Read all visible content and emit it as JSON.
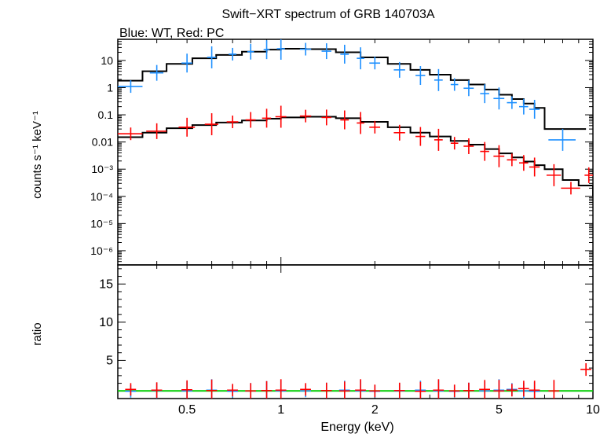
{
  "title": "Swift−XRT spectrum of GRB 140703A",
  "subtitle": "Blue: WT, Red: PC",
  "colors": {
    "wt": "#1e90ff",
    "pc": "#ff0000",
    "model": "#000000",
    "unity": "#00cc00"
  },
  "chart_data": [
    {
      "type": "scatter",
      "panel": "spectrum",
      "title": "Swift−XRT spectrum of GRB 140703A",
      "xlabel": "",
      "ylabel": "counts s⁻¹ keV⁻¹",
      "xscale": "log",
      "yscale": "log",
      "xlim": [
        0.3,
        10
      ],
      "ylim": [
        3e-07,
        60
      ],
      "yticks": [
        {
          "value": 10,
          "label": "10"
        },
        {
          "value": 1,
          "label": "1"
        },
        {
          "value": 0.1,
          "label": "0.1"
        },
        {
          "value": 0.01,
          "label": "0.01"
        },
        {
          "value": 0.001,
          "label": "10⁻³"
        },
        {
          "value": 0.0001,
          "label": "10⁻⁴"
        },
        {
          "value": 1e-05,
          "label": "10⁻⁵"
        },
        {
          "value": 1e-06,
          "label": "10⁻⁶"
        }
      ],
      "series": [
        {
          "color": "#1e90ff",
          "x": [
            0.33,
            0.4,
            0.5,
            0.6,
            0.7,
            0.8,
            0.9,
            1.0,
            1.2,
            1.4,
            1.6,
            1.8,
            2.0,
            2.4,
            2.8,
            3.2,
            3.6,
            4.0,
            4.5,
            5.0,
            5.5,
            6.0,
            6.5,
            8.0
          ],
          "y": [
            1.1,
            3.5,
            8.0,
            13,
            17,
            21,
            25,
            27,
            26,
            22,
            17,
            12,
            8.0,
            4.5,
            2.8,
            1.9,
            1.3,
            0.95,
            0.6,
            0.4,
            0.28,
            0.2,
            0.16,
            0.012
          ],
          "xerr": [
            0.03,
            0.02,
            0.02,
            0.02,
            0.02,
            0.02,
            0.02,
            0.03,
            0.05,
            0.05,
            0.05,
            0.05,
            0.08,
            0.1,
            0.1,
            0.1,
            0.1,
            0.15,
            0.15,
            0.2,
            0.2,
            0.2,
            0.25,
            0.8
          ]
        },
        {
          "color": "#ff0000",
          "x": [
            0.33,
            0.4,
            0.5,
            0.6,
            0.7,
            0.8,
            0.9,
            1.0,
            1.2,
            1.4,
            1.6,
            1.8,
            2.0,
            2.4,
            2.8,
            3.2,
            3.6,
            4.0,
            4.5,
            5.0,
            5.5,
            6.0,
            6.5,
            7.5,
            8.5,
            9.7
          ],
          "y": [
            0.02,
            0.025,
            0.035,
            0.045,
            0.055,
            0.065,
            0.075,
            0.085,
            0.09,
            0.08,
            0.065,
            0.05,
            0.035,
            0.022,
            0.016,
            0.012,
            0.009,
            0.007,
            0.0045,
            0.003,
            0.0022,
            0.0017,
            0.0012,
            0.0006,
            0.0002,
            0.0006
          ],
          "xerr": [
            0.03,
            0.03,
            0.03,
            0.03,
            0.03,
            0.03,
            0.03,
            0.04,
            0.05,
            0.05,
            0.05,
            0.05,
            0.08,
            0.1,
            0.1,
            0.1,
            0.1,
            0.15,
            0.15,
            0.2,
            0.2,
            0.2,
            0.25,
            0.4,
            0.6,
            0.3
          ]
        },
        {
          "color": "#000000",
          "x": [
            0.3,
            0.36,
            0.43,
            0.52,
            0.62,
            0.75,
            0.9,
            1.0,
            1.2,
            1.5,
            1.8,
            2.2,
            2.6,
            3.0,
            3.5,
            4.0,
            4.5,
            5.0,
            5.5,
            6.0,
            6.5,
            7.0,
            9.5
          ],
          "y": [
            1.8,
            4.0,
            7.5,
            12,
            16,
            21,
            25,
            27,
            26,
            20,
            13,
            7.5,
            4.5,
            3.0,
            1.9,
            1.3,
            0.85,
            0.55,
            0.38,
            0.26,
            0.18,
            0.03,
            0.03
          ]
        },
        {
          "color": "#000000",
          "x": [
            0.3,
            0.36,
            0.43,
            0.52,
            0.62,
            0.75,
            0.9,
            1.0,
            1.2,
            1.5,
            1.8,
            2.2,
            2.6,
            3.0,
            3.5,
            4.0,
            4.5,
            5.0,
            5.5,
            6.0,
            6.5,
            7.0,
            8.0,
            9.0,
            10.0
          ],
          "y": [
            0.015,
            0.022,
            0.032,
            0.042,
            0.052,
            0.062,
            0.072,
            0.08,
            0.085,
            0.075,
            0.055,
            0.035,
            0.022,
            0.016,
            0.011,
            0.008,
            0.0055,
            0.0038,
            0.0027,
            0.0019,
            0.0014,
            0.001,
            0.0004,
            0.00025,
            0.0001
          ]
        }
      ]
    },
    {
      "type": "scatter",
      "panel": "ratio",
      "xlabel": "Energy (keV)",
      "ylabel": "ratio",
      "xscale": "log",
      "xlim": [
        0.3,
        10
      ],
      "ylim": [
        0,
        17.5
      ],
      "xticks": [
        {
          "value": 0.5,
          "label": "0.5"
        },
        {
          "value": 1,
          "label": "1"
        },
        {
          "value": 2,
          "label": "2"
        },
        {
          "value": 5,
          "label": "5"
        },
        {
          "value": 10,
          "label": "10"
        }
      ],
      "yticks": [
        {
          "value": 5,
          "label": "5"
        },
        {
          "value": 10,
          "label": "10"
        },
        {
          "value": 15,
          "label": "15"
        }
      ],
      "reference_line": 1,
      "series": [
        {
          "color": "#1e90ff",
          "x": [
            0.33,
            0.4,
            0.5,
            0.6,
            0.7,
            0.8,
            0.9,
            1.0,
            1.2,
            1.4,
            1.6,
            1.8,
            2.0,
            2.4,
            2.8,
            3.2,
            3.6,
            4.0,
            4.5,
            5.0,
            5.5,
            6.0,
            6.5
          ],
          "y": [
            0.95,
            1.05,
            1.0,
            1.1,
            0.95,
            1.0,
            1.05,
            1.0,
            1.0,
            1.05,
            1.1,
            1.0,
            0.95,
            1.0,
            1.1,
            1.0,
            0.95,
            1.05,
            1.0,
            1.1,
            1.2,
            1.0,
            0.95
          ]
        },
        {
          "color": "#ff0000",
          "x": [
            0.33,
            0.4,
            0.5,
            0.6,
            0.7,
            0.8,
            0.9,
            1.0,
            1.2,
            1.4,
            1.6,
            1.8,
            2.0,
            2.4,
            2.8,
            3.2,
            3.6,
            4.0,
            4.5,
            5.0,
            5.5,
            6.0,
            6.5,
            7.5,
            9.5
          ],
          "y": [
            1.2,
            1.1,
            1.15,
            1.05,
            1.1,
            1.0,
            1.05,
            1.1,
            1.2,
            1.05,
            1.0,
            1.1,
            1.0,
            1.05,
            0.95,
            1.1,
            1.0,
            1.05,
            1.2,
            1.0,
            1.1,
            1.3,
            1.1,
            1.0,
            3.8
          ]
        }
      ]
    }
  ]
}
